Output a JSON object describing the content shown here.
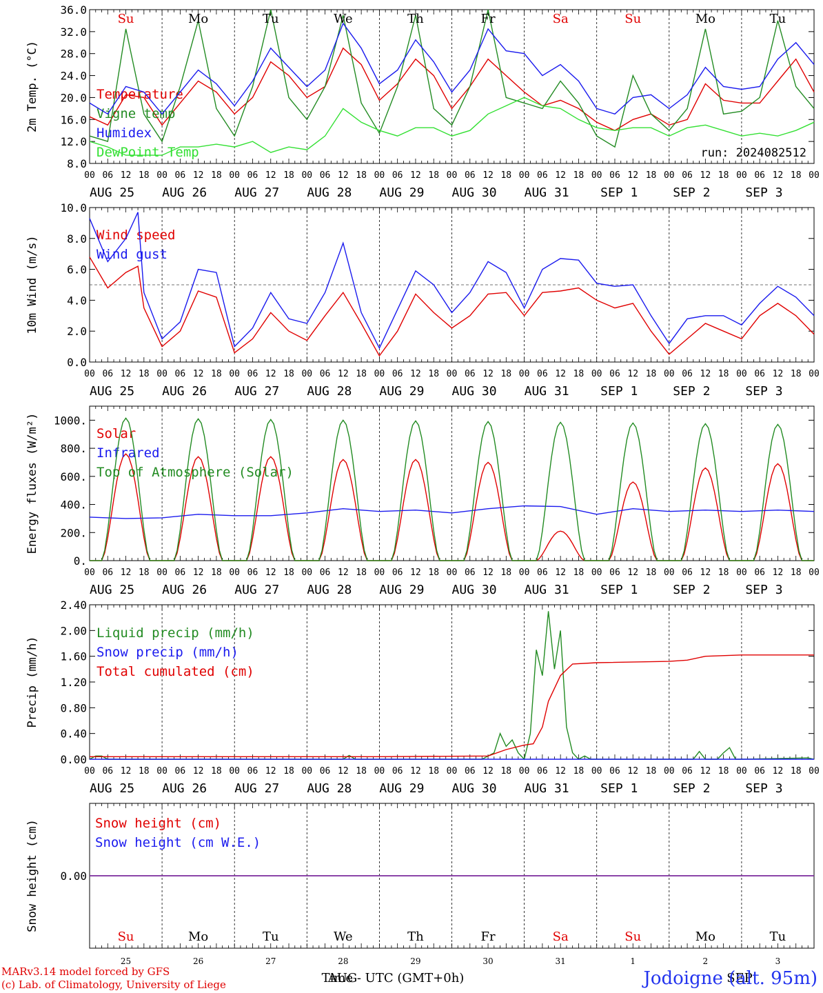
{
  "colors": {
    "red": "#e00000",
    "green": "#228b22",
    "lightgreen": "#33e033",
    "blue": "#1a1aee",
    "purple": "#7b2a9b"
  },
  "footer": {
    "model": "MARv3.14 model forced by GFS",
    "credit": "(c) Lab. of Climatology, University of Liege",
    "station": "Jodoigne (alt. 95m)",
    "xlabel": "Time - UTC (GMT+0h)",
    "month_mid": "AUG",
    "month_end": "SEP"
  },
  "hour_ticks": [
    "00",
    "06",
    "12",
    "18",
    "00",
    "06",
    "12",
    "18",
    "00",
    "06",
    "12",
    "18",
    "00",
    "06",
    "12",
    "18",
    "00",
    "06",
    "12",
    "18",
    "00",
    "06",
    "12",
    "18",
    "00",
    "06",
    "12",
    "18",
    "00",
    "06",
    "12",
    "18",
    "00",
    "06",
    "12",
    "18",
    "00",
    "06",
    "12",
    "18",
    "00"
  ],
  "dates": [
    "AUG 25",
    "AUG 26",
    "AUG 27",
    "AUG 28",
    "AUG 29",
    "AUG 30",
    "AUG 31",
    "SEP  1",
    "SEP  2",
    "SEP  3"
  ],
  "weekdays": [
    {
      "label": "Su",
      "color": "#e00000"
    },
    {
      "label": "Mo",
      "color": "#000000"
    },
    {
      "label": "Tu",
      "color": "#000000"
    },
    {
      "label": "We",
      "color": "#000000"
    },
    {
      "label": "Th",
      "color": "#000000"
    },
    {
      "label": "Fr",
      "color": "#000000"
    },
    {
      "label": "Sa",
      "color": "#e00000"
    },
    {
      "label": "Su",
      "color": "#e00000"
    },
    {
      "label": "Mo",
      "color": "#000000"
    },
    {
      "label": "Tu",
      "color": "#000000"
    }
  ],
  "day_numbers": [
    "25",
    "26",
    "27",
    "28",
    "29",
    "30",
    "31",
    "1",
    "2",
    "3"
  ],
  "chart_data": [
    {
      "type": "line",
      "ylabel": "2m Temp. (°C)",
      "ylim": [
        8,
        36
      ],
      "yticks": [
        "8.0",
        "12.0",
        "16.0",
        "20.0",
        "24.0",
        "28.0",
        "32.0",
        "36.0"
      ],
      "annotation": "run: 2024082512",
      "x_unit": "hours since 2024-08-25 00 UTC",
      "series": [
        {
          "name": "Temperature",
          "color": "#e00000",
          "x": [
            0,
            6,
            12,
            18,
            24,
            30,
            36,
            42,
            48,
            54,
            60,
            66,
            72,
            78,
            84,
            90,
            96,
            102,
            108,
            114,
            120,
            126,
            132,
            138,
            144,
            150,
            156,
            162,
            168,
            174,
            180,
            186,
            192,
            198,
            204,
            210,
            216,
            222,
            228,
            234,
            240
          ],
          "y": [
            16.5,
            15.0,
            20.5,
            20.0,
            15.0,
            19.0,
            23.0,
            21.0,
            17.0,
            20.0,
            26.5,
            24.0,
            20.0,
            22.0,
            29.0,
            26.0,
            19.5,
            22.5,
            27.0,
            24.0,
            18.0,
            22.0,
            27.0,
            24.0,
            21.0,
            18.5,
            19.5,
            18.0,
            15.5,
            14.0,
            16.0,
            17.0,
            15.0,
            16.0,
            22.5,
            19.5,
            19.0,
            19.0,
            23.0,
            27.0,
            21.0
          ]
        },
        {
          "name": "Vigne temp",
          "color": "#228b22",
          "x": [
            0,
            6,
            12,
            18,
            24,
            30,
            36,
            42,
            48,
            54,
            60,
            66,
            72,
            78,
            84,
            90,
            96,
            102,
            108,
            114,
            120,
            126,
            132,
            138,
            144,
            150,
            156,
            162,
            168,
            174,
            180,
            186,
            192,
            198,
            204,
            210,
            216,
            222,
            228,
            234,
            240
          ],
          "y": [
            13.0,
            12.0,
            32.5,
            17.0,
            12.0,
            22.0,
            34.0,
            18.0,
            13.0,
            22.0,
            36.0,
            20.0,
            16.0,
            22.0,
            35.0,
            19.0,
            13.5,
            22.0,
            35.0,
            18.0,
            15.0,
            22.0,
            36.0,
            20.0,
            19.0,
            18.0,
            23.0,
            19.0,
            13.0,
            11.0,
            24.0,
            17.0,
            14.0,
            18.0,
            32.5,
            17.0,
            17.5,
            20.0,
            34.0,
            22.0,
            18.0
          ]
        },
        {
          "name": "Humidex",
          "color": "#1a1aee",
          "x": [
            0,
            6,
            12,
            18,
            24,
            30,
            36,
            42,
            48,
            54,
            60,
            66,
            72,
            78,
            84,
            90,
            96,
            102,
            108,
            114,
            120,
            126,
            132,
            138,
            144,
            150,
            156,
            162,
            168,
            174,
            180,
            186,
            192,
            198,
            204,
            210,
            216,
            222,
            228,
            234,
            240
          ],
          "y": [
            19.0,
            17.0,
            22.0,
            21.0,
            17.0,
            21.0,
            25.0,
            22.5,
            18.5,
            23.0,
            29.0,
            25.5,
            22.0,
            25.0,
            33.5,
            29.0,
            22.5,
            25.0,
            30.5,
            26.5,
            21.0,
            25.0,
            32.5,
            28.5,
            28.0,
            24.0,
            26.0,
            23.0,
            18.0,
            17.0,
            20.0,
            20.5,
            18.0,
            20.5,
            25.5,
            22.0,
            21.5,
            22.0,
            27.0,
            30.0,
            26.0
          ]
        },
        {
          "name": "DewPoint Temp",
          "color": "#33e033",
          "x": [
            0,
            6,
            12,
            18,
            24,
            30,
            36,
            42,
            48,
            54,
            60,
            66,
            72,
            78,
            84,
            90,
            96,
            102,
            108,
            114,
            120,
            126,
            132,
            138,
            144,
            150,
            156,
            162,
            168,
            174,
            180,
            186,
            192,
            198,
            204,
            210,
            216,
            222,
            228,
            234,
            240
          ],
          "y": [
            12.0,
            11.0,
            9.5,
            9.5,
            9.5,
            11.0,
            11.0,
            11.5,
            11.0,
            12.0,
            10.0,
            11.0,
            10.5,
            13.0,
            18.0,
            15.5,
            14.0,
            13.0,
            14.5,
            14.5,
            13.0,
            14.0,
            17.0,
            18.5,
            20.0,
            18.5,
            18.0,
            16.0,
            14.5,
            14.0,
            14.5,
            14.5,
            13.0,
            14.5,
            15.0,
            14.0,
            13.0,
            13.5,
            13.0,
            14.0,
            15.5
          ]
        }
      ]
    },
    {
      "type": "line",
      "ylabel": "10m Wind (m/s)",
      "ylim": [
        0,
        10
      ],
      "yticks": [
        "0.0",
        "2.0",
        "4.0",
        "6.0",
        "8.0",
        "10.0"
      ],
      "reference_line": 5.0,
      "x_unit": "hours since 2024-08-25 00 UTC",
      "series": [
        {
          "name": "Wind speed",
          "color": "#e00000",
          "x": [
            0,
            6,
            12,
            16,
            18,
            24,
            30,
            36,
            42,
            48,
            54,
            60,
            66,
            72,
            78,
            84,
            90,
            96,
            102,
            108,
            114,
            120,
            126,
            132,
            138,
            144,
            150,
            156,
            162,
            168,
            174,
            180,
            186,
            192,
            198,
            204,
            210,
            216,
            222,
            228,
            234,
            240
          ],
          "y": [
            6.8,
            4.8,
            5.8,
            6.2,
            3.5,
            1.0,
            2.0,
            4.6,
            4.2,
            0.6,
            1.5,
            3.2,
            2.0,
            1.4,
            3.0,
            4.5,
            2.5,
            0.4,
            2.0,
            4.4,
            3.2,
            2.2,
            3.0,
            4.4,
            4.5,
            3.0,
            4.5,
            4.6,
            4.8,
            4.0,
            3.5,
            3.8,
            2.0,
            0.5,
            1.5,
            2.5,
            2.0,
            1.5,
            3.0,
            3.8,
            3.0,
            1.8
          ]
        },
        {
          "name": "Wind gust",
          "color": "#1a1aee",
          "x": [
            0,
            6,
            12,
            16,
            18,
            24,
            30,
            36,
            42,
            48,
            54,
            60,
            66,
            72,
            78,
            84,
            90,
            96,
            102,
            108,
            114,
            120,
            126,
            132,
            138,
            144,
            150,
            156,
            162,
            168,
            174,
            180,
            186,
            192,
            198,
            204,
            210,
            216,
            222,
            228,
            234,
            240
          ],
          "y": [
            9.3,
            6.5,
            8.0,
            9.7,
            4.5,
            1.5,
            2.6,
            6.0,
            5.8,
            1.0,
            2.2,
            4.5,
            2.8,
            2.5,
            4.5,
            7.7,
            3.2,
            0.9,
            3.4,
            5.9,
            5.0,
            3.2,
            4.5,
            6.5,
            5.8,
            3.5,
            6.0,
            6.7,
            6.6,
            5.1,
            4.9,
            5.0,
            3.0,
            1.2,
            2.8,
            3.0,
            3.0,
            2.4,
            3.8,
            4.9,
            4.2,
            3.0
          ]
        }
      ]
    },
    {
      "type": "line",
      "ylabel": "Energy fluxes (W/m²)",
      "ylim": [
        0,
        1100
      ],
      "yticks": [
        "0.",
        "200.",
        "400.",
        "600.",
        "800.",
        "1000."
      ],
      "x_unit": "hours since 2024-08-25 00 UTC",
      "series": [
        {
          "name": "Solar",
          "color": "#e00000",
          "day_peaks": [
            760,
            740,
            740,
            720,
            720,
            700,
            210,
            560,
            660,
            690
          ]
        },
        {
          "name": "Infrared",
          "color": "#1a1aee",
          "x": [
            0,
            12,
            24,
            36,
            48,
            60,
            72,
            84,
            96,
            108,
            120,
            132,
            144,
            156,
            168,
            180,
            192,
            204,
            216,
            228,
            240
          ],
          "y": [
            310,
            300,
            305,
            330,
            320,
            320,
            340,
            370,
            350,
            360,
            340,
            370,
            390,
            385,
            330,
            370,
            350,
            360,
            350,
            360,
            350
          ]
        },
        {
          "name": "Top of Atmosphere (Solar)",
          "color": "#228b22",
          "day_peaks": [
            1015,
            1010,
            1005,
            1000,
            995,
            990,
            985,
            980,
            975,
            970
          ]
        }
      ]
    },
    {
      "type": "line",
      "ylabel": "Precip (mm/h)",
      "ylim": [
        0,
        2.4
      ],
      "yticks": [
        "0.00",
        "0.40",
        "0.80",
        "1.20",
        "1.60",
        "2.00",
        "2.40"
      ],
      "x_unit": "hours since 2024-08-25 00 UTC",
      "series": [
        {
          "name": "Liquid precip (mm/h)",
          "color": "#228b22",
          "x": [
            0,
            2,
            4,
            6,
            8,
            60,
            84,
            86,
            88,
            130,
            134,
            136,
            138,
            140,
            142,
            144,
            146,
            148,
            150,
            152,
            154,
            156,
            158,
            160,
            162,
            164,
            166,
            168,
            200,
            202,
            204,
            208,
            210,
            212,
            214,
            216,
            238,
            240
          ],
          "y": [
            0.0,
            0.05,
            0.05,
            0.0,
            0.0,
            0.0,
            0.0,
            0.06,
            0.0,
            0.0,
            0.1,
            0.4,
            0.2,
            0.3,
            0.1,
            0.0,
            0.4,
            1.7,
            1.3,
            2.3,
            1.4,
            2.0,
            0.5,
            0.1,
            0.0,
            0.05,
            0.0,
            0.0,
            0.0,
            0.12,
            0.0,
            0.0,
            0.1,
            0.18,
            0.0,
            0.0,
            0.02,
            0.0
          ]
        },
        {
          "name": "Snow precip (mm/h)",
          "color": "#1a1aee",
          "x": [
            0,
            240
          ],
          "y": [
            0.0,
            0.0
          ]
        },
        {
          "name": "Total cumulated (cm)",
          "color": "#e00000",
          "x": [
            0,
            48,
            96,
            132,
            138,
            144,
            147,
            150,
            152,
            156,
            160,
            168,
            192,
            198,
            204,
            216,
            240
          ],
          "y": [
            0.04,
            0.04,
            0.04,
            0.05,
            0.15,
            0.22,
            0.24,
            0.5,
            0.9,
            1.3,
            1.48,
            1.5,
            1.52,
            1.54,
            1.6,
            1.62,
            1.62
          ]
        }
      ]
    },
    {
      "type": "line",
      "ylabel": "Snow height (cm)",
      "yticks": [
        "0.00"
      ],
      "x_unit": "hours since 2024-08-25 00 UTC",
      "series": [
        {
          "name": "Snow height (cm)",
          "color": "#e00000",
          "x": [
            0,
            240
          ],
          "y": [
            0,
            0
          ]
        },
        {
          "name": "Snow height (cm W.E.)",
          "color": "#1a1aee",
          "x": [
            0,
            240
          ],
          "y": [
            0,
            0
          ]
        }
      ]
    }
  ]
}
